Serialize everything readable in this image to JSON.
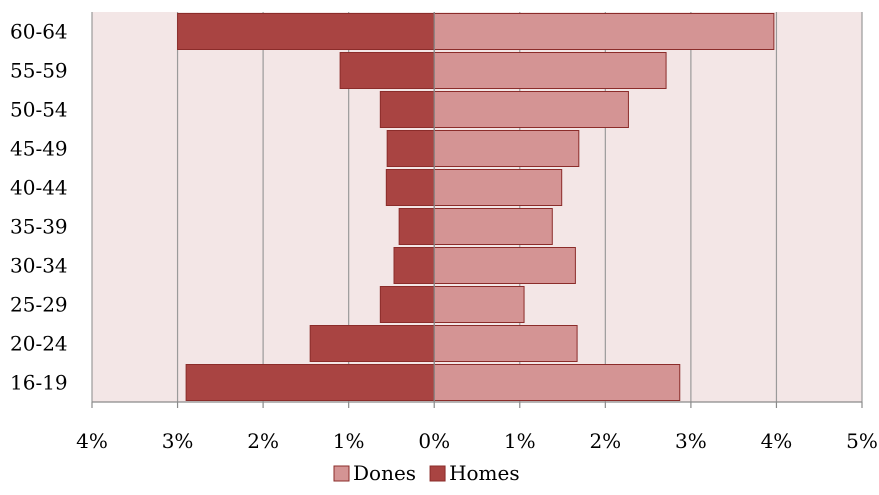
{
  "chart_data": {
    "type": "bar",
    "orientation": "horizontal",
    "layout": "population-pyramid",
    "title": "",
    "xlabel": "",
    "ylabel": "",
    "categories": [
      "16-19",
      "20-24",
      "25-29",
      "30-34",
      "35-39",
      "40-44",
      "45-49",
      "50-54",
      "55-59",
      "60-64"
    ],
    "series": [
      {
        "name": "Homes",
        "side": "left",
        "values": [
          2.9,
          1.45,
          0.63,
          0.47,
          0.41,
          0.56,
          0.55,
          0.63,
          1.1,
          3.0
        ]
      },
      {
        "name": "Dones",
        "side": "right",
        "values": [
          2.87,
          1.67,
          1.05,
          1.65,
          1.38,
          1.49,
          1.69,
          2.27,
          2.71,
          3.97
        ]
      }
    ],
    "xlim": [
      -4,
      5
    ],
    "xticks": [
      -4,
      -3,
      -2,
      -1,
      0,
      1,
      2,
      3,
      4,
      5
    ],
    "xtick_labels": [
      "4%",
      "3%",
      "2%",
      "1%",
      "0%",
      "1%",
      "2%",
      "3%",
      "4%",
      "5%"
    ],
    "grid": "vertical",
    "legend": {
      "position": "bottom",
      "entries": [
        "Dones",
        "Homes"
      ]
    },
    "colors": {
      "Dones": "#d49494",
      "Homes": "#a94442",
      "bar_border": "#8b2c2a",
      "plot_background": "#f3e6e6",
      "gridline": "#9a9a9a"
    }
  }
}
